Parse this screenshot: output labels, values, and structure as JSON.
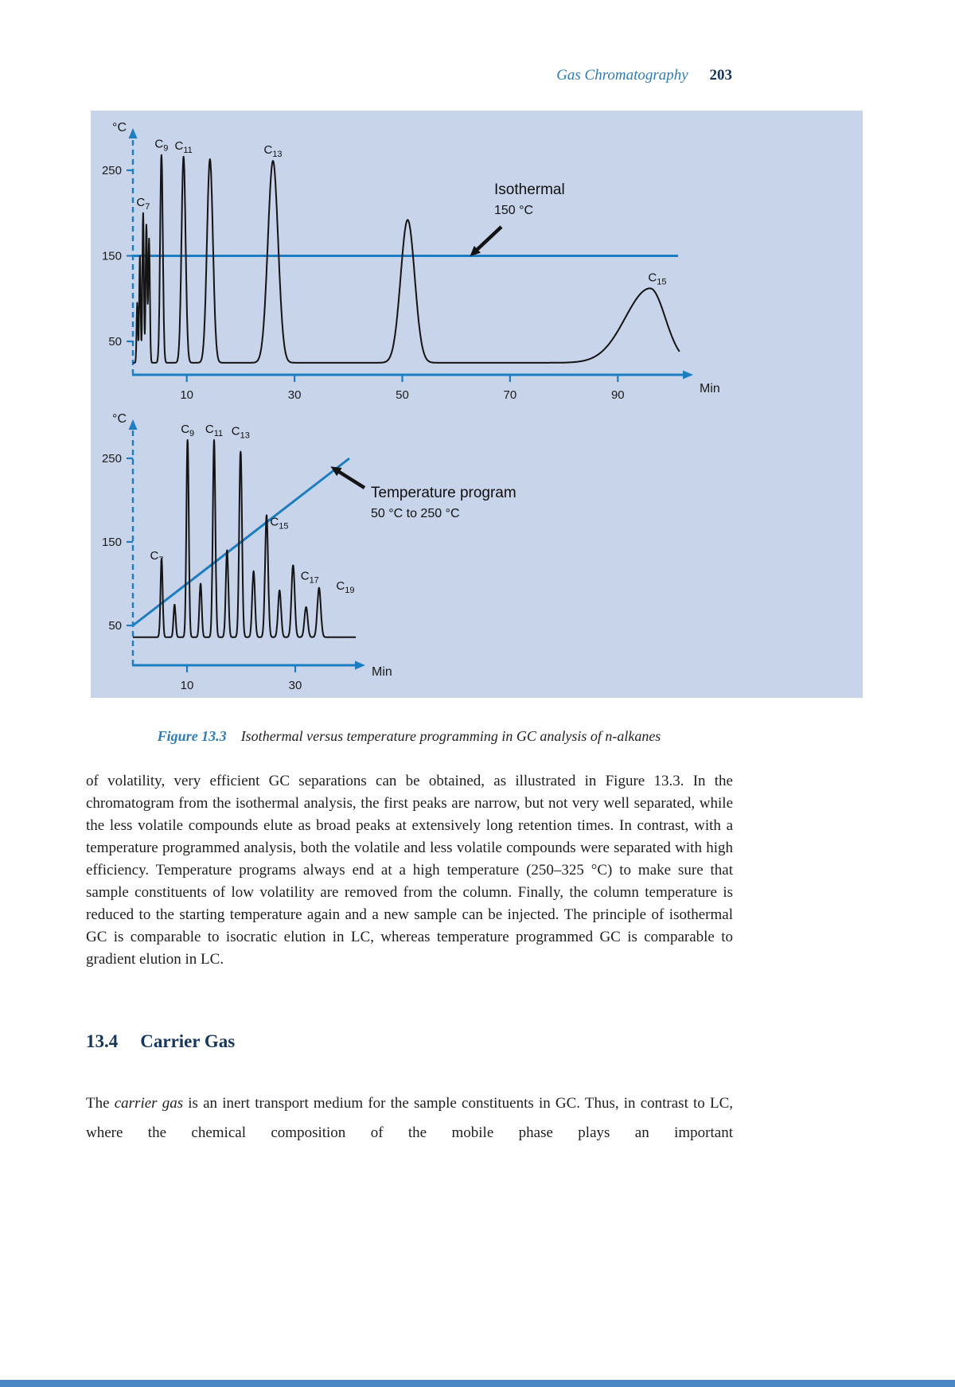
{
  "header": {
    "running_title": "Gas Chromatography",
    "page_number": "203"
  },
  "figure": {
    "caption_label": "Figure 13.3",
    "caption_text": "Isothermal versus temperature programming in GC analysis of n-alkanes"
  },
  "chart_data": [
    {
      "type": "line",
      "title": "",
      "xlabel": "Min",
      "ylabel": "°C",
      "xlim": [
        0,
        102
      ],
      "ylim": [
        0,
        285
      ],
      "x_ticks": [
        10,
        30,
        50,
        70,
        90
      ],
      "y_ticks": [
        250,
        150,
        50
      ],
      "baseline": 25,
      "program_line": {
        "kind": "horizontal",
        "temp": 150
      },
      "annotation": [
        "Isothermal",
        "150 °C"
      ],
      "peaks": [
        {
          "min": 0.8,
          "temp": 95,
          "width": 0.12
        },
        {
          "min": 1.3,
          "temp": 150,
          "width": 0.13
        },
        {
          "min": 1.9,
          "temp": 200,
          "width": 0.14,
          "label": "C7"
        },
        {
          "min": 2.5,
          "temp": 186,
          "width": 0.14
        },
        {
          "min": 3.0,
          "temp": 170,
          "width": 0.15
        },
        {
          "min": 5.3,
          "temp": 268,
          "width": 0.25,
          "label": "C9"
        },
        {
          "min": 9.4,
          "temp": 266,
          "width": 0.38,
          "label": "C11"
        },
        {
          "min": 14.3,
          "temp": 263,
          "width": 0.55
        },
        {
          "min": 26.0,
          "temp": 261,
          "width": 0.95,
          "label": "C13"
        },
        {
          "min": 51.0,
          "temp": 192,
          "width": 1.3
        },
        {
          "min": 96.0,
          "temp": 112,
          "width": 4.6,
          "width_right": 2.8,
          "label": "C15"
        }
      ]
    },
    {
      "type": "line",
      "title": "",
      "xlabel": "Min",
      "ylabel": "°C",
      "xlim": [
        0,
        41
      ],
      "ylim": [
        0,
        285
      ],
      "x_ticks": [
        10,
        30
      ],
      "y_ticks": [
        250,
        150,
        50
      ],
      "baseline": 36,
      "program_line": {
        "kind": "segment",
        "from_min": 0,
        "from_temp": 50,
        "to_min": 40,
        "to_temp": 250
      },
      "annotation": [
        "Temperature program",
        "50 °C to 250 °C"
      ],
      "peaks": [
        {
          "min": 5.3,
          "temp": 130,
          "width": 0.2,
          "label": "C7"
        },
        {
          "min": 7.7,
          "temp": 75,
          "width": 0.2
        },
        {
          "min": 10.1,
          "temp": 272,
          "width": 0.22,
          "label": "C9"
        },
        {
          "min": 12.5,
          "temp": 100,
          "width": 0.22
        },
        {
          "min": 15.0,
          "temp": 272,
          "width": 0.24,
          "label": "C11"
        },
        {
          "min": 17.4,
          "temp": 140,
          "width": 0.24
        },
        {
          "min": 19.9,
          "temp": 258,
          "width": 0.26,
          "label": "C13"
        },
        {
          "min": 22.3,
          "temp": 115,
          "width": 0.26
        },
        {
          "min": 24.7,
          "temp": 182,
          "width": 0.28,
          "label": "C15"
        },
        {
          "min": 27.1,
          "temp": 92,
          "width": 0.28
        },
        {
          "min": 29.6,
          "temp": 122,
          "width": 0.3,
          "label": "C17"
        },
        {
          "min": 32.0,
          "temp": 72,
          "width": 0.3
        },
        {
          "min": 34.4,
          "temp": 95,
          "width": 0.32,
          "label": "C19"
        }
      ]
    }
  ],
  "body": {
    "paragraph1": "of volatility, very efficient GC separations can be obtained, as illustrated in Figure 13.3. In the chromatogram from the isothermal analysis, the first peaks are narrow, but not very well separated, while the less volatile compounds elute as broad peaks at extensively long retention times. In contrast, with a temperature programmed analysis, both the volatile and less volatile compounds were separated with high efficiency. Temperature programs always end at a high temperature (250–325 °C) to make sure that sample constituents of low volatility are removed from the column. Finally, the column temperature is reduced to the starting temperature again and a new sample can be injected. The principle of isothermal GC is comparable to isocratic elution in LC, whereas temperature programmed GC is comparable to gradient elution in LC.",
    "section_number": "13.4",
    "section_title": "Carrier Gas",
    "paragraph2_before": "The ",
    "paragraph2_italic": "carrier gas",
    "paragraph2_after": " is an inert transport medium for the sample constituents in GC. Thus, in contrast to LC, where the chemical composition of the mobile phase plays an important"
  },
  "colors": {
    "figure_bg": "#c7d4e9",
    "plot_blue": "#1b7ec2",
    "trace_black": "#141414",
    "heading_blue": "#2e7cb8",
    "section_navy": "#16365c",
    "body_text": "#1e1e1c",
    "bottom_bar": "#4b87c4"
  }
}
